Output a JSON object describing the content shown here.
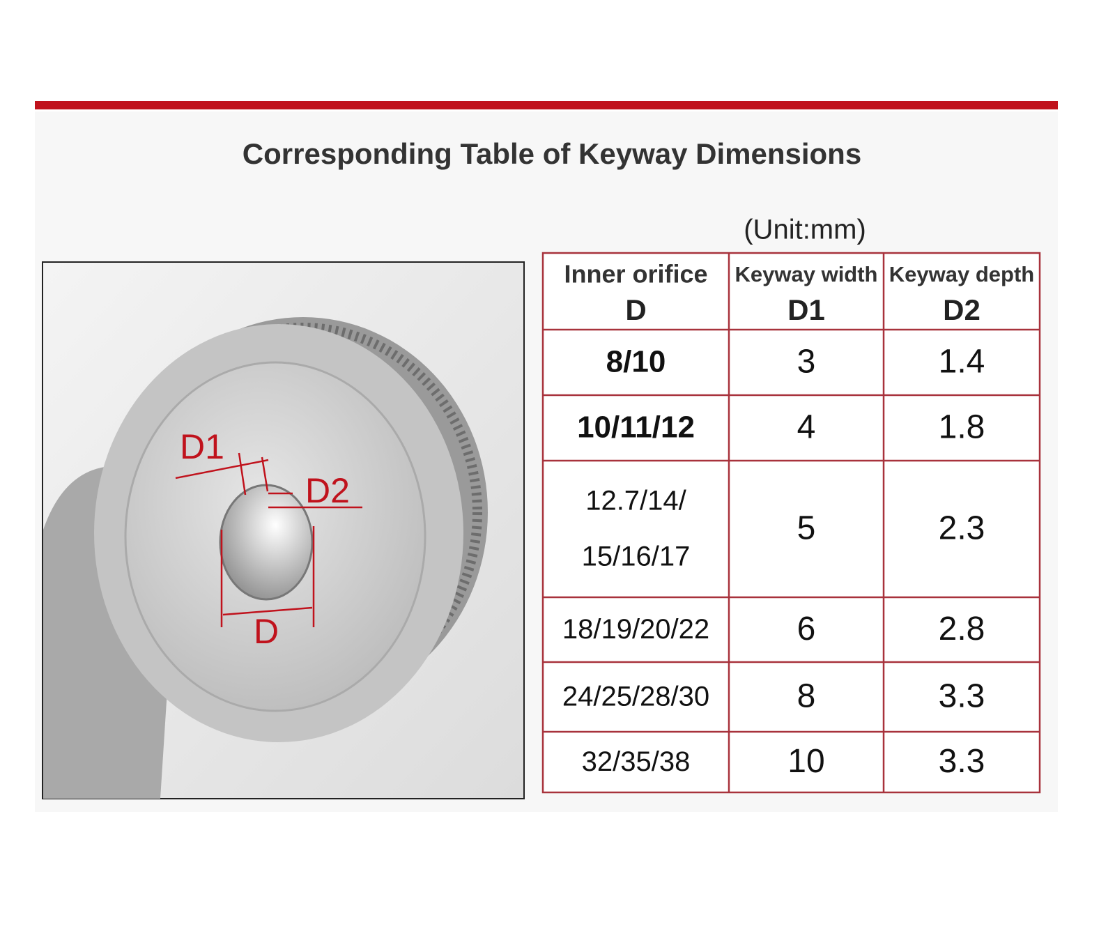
{
  "header": {
    "title": "Corresponding Table of Keyway Dimensions",
    "unit": "(Unit:mm)"
  },
  "diagram": {
    "labels": [
      "D1",
      "D2",
      "D"
    ]
  },
  "table": {
    "columns": [
      [
        "Inner orifice",
        "D"
      ],
      [
        "Keyway width",
        "D1"
      ],
      [
        "Keyway depth",
        "D2"
      ]
    ],
    "rows": [
      [
        "8/10",
        "3",
        "1.4"
      ],
      [
        "10/11/12",
        "4",
        "1.8"
      ],
      [
        [
          "12.7/14/",
          "15/16/17"
        ],
        "5",
        "2.3"
      ],
      [
        "18/19/20/22",
        "6",
        "2.8"
      ],
      [
        "24/25/28/30",
        "8",
        "3.3"
      ],
      [
        "32/35/38",
        "10",
        "3.3"
      ]
    ]
  }
}
